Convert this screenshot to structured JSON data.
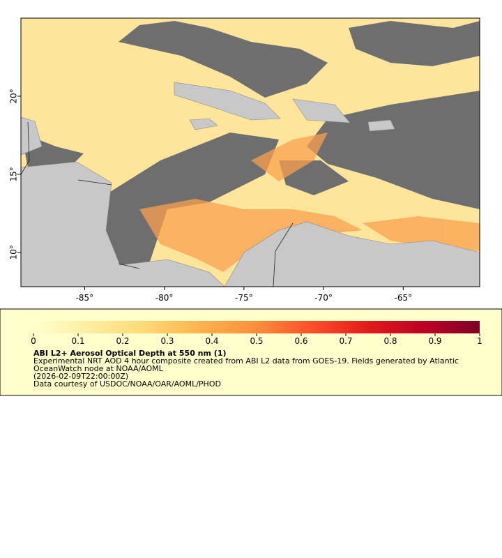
{
  "map": {
    "xlim": [
      -89,
      -60.2
    ],
    "ylim": [
      7.8,
      25
    ],
    "xticks": [
      {
        "value": -85,
        "label": "-85°"
      },
      {
        "value": -80,
        "label": "-80°"
      },
      {
        "value": -75,
        "label": "-75°"
      },
      {
        "value": -70,
        "label": "-70°"
      },
      {
        "value": -65,
        "label": "-65°"
      }
    ],
    "yticks": [
      {
        "value": 10,
        "label": "10°"
      },
      {
        "value": 15,
        "label": "15°"
      },
      {
        "value": 20,
        "label": "20°"
      }
    ]
  },
  "colorbar": {
    "lim": [
      0,
      1
    ],
    "ticks": [
      0,
      0.1,
      0.2,
      0.3,
      0.4,
      0.5,
      0.6,
      0.7,
      0.8,
      0.9,
      1
    ],
    "colormap": [
      "#ffffcc",
      "#ffeda0",
      "#fed976",
      "#feb24c",
      "#fd8d3c",
      "#fc4e2a",
      "#e31a1c",
      "#bd0026",
      "#800026"
    ]
  },
  "legend": {
    "title": "ABI L2+ Aerosol Optical Depth at 550 nm (1)",
    "lines": [
      "Experimental NRT AOD 4 hour composite created from ABI L2 data from GOES-19. Fields generated by Atlantic",
      "OceanWatch node at NOAA/AOML",
      "(2026-02-09T22:00:00Z)",
      "Data courtesy of USDOC/NOAA/OAR/AOML/PHOD"
    ]
  }
}
